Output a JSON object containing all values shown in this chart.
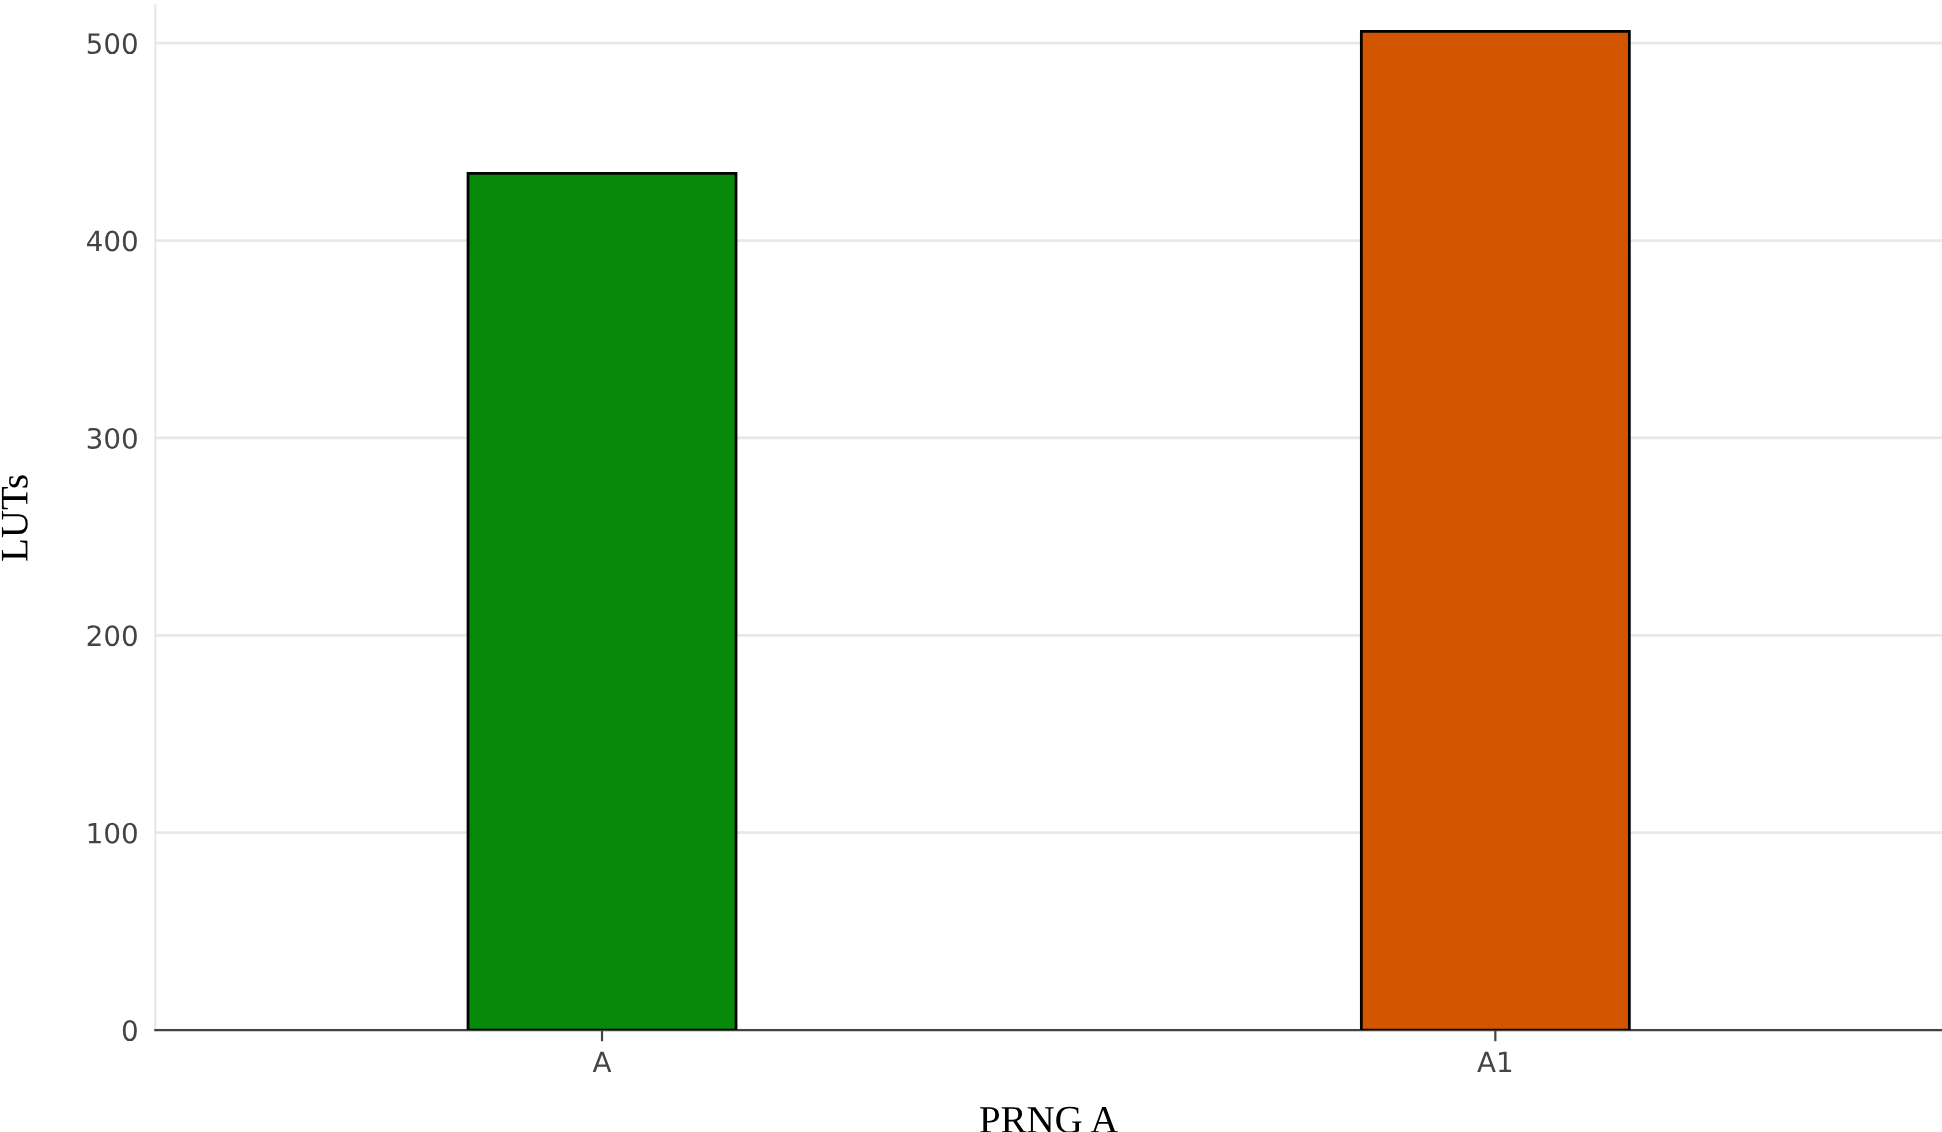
{
  "chart_data": {
    "type": "bar",
    "xlabel": "PRNG A",
    "ylabel": "LUTs",
    "categories": [
      "A",
      "A1"
    ],
    "values": [
      434,
      506
    ],
    "colors": [
      "#078a09",
      "#d45500"
    ],
    "ylim": [
      0,
      519
    ],
    "yticks": [
      0,
      100,
      200,
      300,
      400,
      500
    ],
    "grid": "y"
  }
}
